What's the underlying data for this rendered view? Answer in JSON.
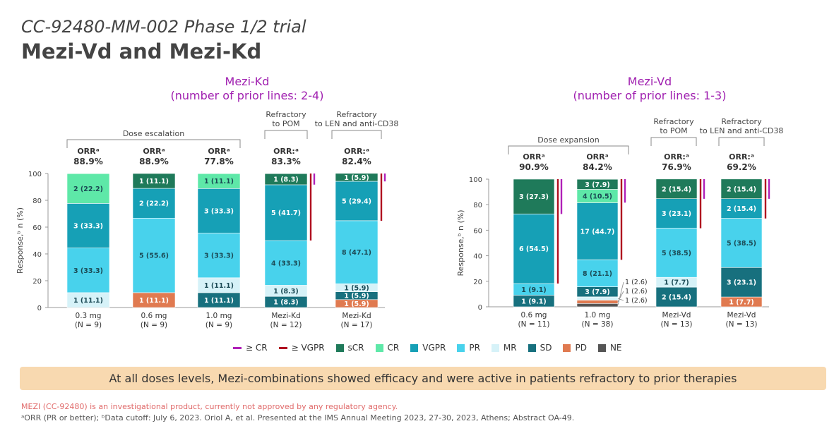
{
  "header": {
    "subtitle": "CC-92480-MM-002 Phase 1/2 trial",
    "title": "Mezi-Vd and Mezi-Kd"
  },
  "panels": {
    "left": {
      "title_line1": "Mezi-Kd",
      "title_line2": "(number of prior lines: 2-4)"
    },
    "right": {
      "title_line1": "Mezi-Vd",
      "title_line2": "(number of prior lines: 1-3)"
    }
  },
  "colors": {
    "sCR": "#1f7a5a",
    "CR": "#5ee8a8",
    "VGPR": "#16a0b6",
    "PR": "#48d2ec",
    "MR": "#d6f2f8",
    "SD": "#17707e",
    "PD": "#e07a50",
    "NE": "#555555",
    "geCR": "#b020b8",
    "geVGPR": "#b01020"
  },
  "legend": {
    "items": [
      {
        "label": "≥ CR",
        "key": "geCR",
        "type": "line"
      },
      {
        "label": "≥ VGPR",
        "key": "geVGPR",
        "type": "line"
      },
      {
        "label": "sCR",
        "key": "sCR",
        "type": "box"
      },
      {
        "label": "CR",
        "key": "CR",
        "type": "box"
      },
      {
        "label": "VGPR",
        "key": "VGPR",
        "type": "box"
      },
      {
        "label": "PR",
        "key": "PR",
        "type": "box"
      },
      {
        "label": "MR",
        "key": "MR",
        "type": "box"
      },
      {
        "label": "SD",
        "key": "SD",
        "type": "box"
      },
      {
        "label": "PD",
        "key": "PD",
        "type": "box"
      },
      {
        "label": "NE",
        "key": "NE",
        "type": "box"
      }
    ]
  },
  "banner": "At all doses levels, Mezi-combinations showed efficacy and were active in patients refractory to prior therapies",
  "footnotes": {
    "line1": "MEZI (CC-92480) is an investigational product, currently not approved by any regulatory agency.",
    "line2": "ᵃORR (PR or better); ᵇData cutoff: July 6, 2023. Oriol A, et al. Presented at the IMS Annual Meeting 2023, 27-30, 2023, Athens; Abstract OA-49."
  },
  "chart_data": [
    {
      "type": "bar",
      "stacked": true,
      "title": "Mezi-Kd",
      "ylabel": "Response,ᵇ n (%)",
      "ylim": [
        0,
        100
      ],
      "yticks": [
        0,
        20,
        40,
        60,
        80,
        100
      ],
      "groups": [
        {
          "label": "Dose escalation"
        },
        {
          "label_line1": "Refractory",
          "label_line2": "to POM"
        },
        {
          "label_line1": "Refractory",
          "label_line2": "to LEN and anti-CD38"
        }
      ],
      "bars": [
        {
          "cat1": "0.3 mg",
          "cat2": "(N = 9)",
          "orr_label": "ORRᵃ",
          "orr_value": "88.9%",
          "segments": [
            {
              "cat": "MR",
              "value": 11.1,
              "label": "1 (11.1)"
            },
            {
              "cat": "PR",
              "value": 33.3,
              "label": "3 (33.3)"
            },
            {
              "cat": "VGPR",
              "value": 33.3,
              "label": "3 (33.3)"
            },
            {
              "cat": "CR",
              "value": 22.2,
              "label": "2 (22.2)"
            }
          ],
          "ge_vgpr": null,
          "ge_cr": null
        },
        {
          "cat1": "0.6 mg",
          "cat2": "(N = 9)",
          "orr_label": "ORRᵃ",
          "orr_value": "88.9%",
          "segments": [
            {
              "cat": "PD",
              "value": 11.1,
              "label": "1 (11.1)"
            },
            {
              "cat": "PR",
              "value": 55.6,
              "label": "5 (55.6)"
            },
            {
              "cat": "VGPR",
              "value": 22.2,
              "label": "2 (22.2)"
            },
            {
              "cat": "sCR",
              "value": 11.1,
              "label": "1 (11.1)"
            }
          ],
          "ge_vgpr": null,
          "ge_cr": null
        },
        {
          "cat1": "1.0 mg",
          "cat2": "(N = 9)",
          "orr_label": "ORRᵃ",
          "orr_value": "77.8%",
          "segments": [
            {
              "cat": "SD",
              "value": 11.1,
              "label": "1 (11.1)"
            },
            {
              "cat": "MR",
              "value": 11.1,
              "label": "1 (11.1)"
            },
            {
              "cat": "PR",
              "value": 33.3,
              "label": "3 (33.3)"
            },
            {
              "cat": "VGPR",
              "value": 33.3,
              "label": "3 (33.3)"
            },
            {
              "cat": "CR",
              "value": 11.1,
              "label": "1 (11.1)"
            }
          ],
          "ge_vgpr": null,
          "ge_cr": null
        },
        {
          "cat1": "Mezi-Kd",
          "cat2": "(N = 12)",
          "orr_label": "ORR:ᵃ",
          "orr_value": "83.3%",
          "segments": [
            {
              "cat": "SD",
              "value": 8.3,
              "label": "1 (8.3)"
            },
            {
              "cat": "MR",
              "value": 8.3,
              "label": "1 (8.3)"
            },
            {
              "cat": "PR",
              "value": 33.3,
              "label": "4 (33.3)"
            },
            {
              "cat": "VGPR",
              "value": 41.7,
              "label": "5 (41.7)"
            },
            {
              "cat": "sCR",
              "value": 8.3,
              "label": "1 (8.3)"
            }
          ],
          "ge_vgpr": 50.0,
          "ge_cr": 8.3
        },
        {
          "cat1": "Mezi-Kd",
          "cat2": "(N = 17)",
          "orr_label": "ORR:ᵃ",
          "orr_value": "82.4%",
          "segments": [
            {
              "cat": "PD",
              "value": 5.9,
              "label": "1 (5.9)"
            },
            {
              "cat": "SD",
              "value": 5.9,
              "label": "1 (5.9)"
            },
            {
              "cat": "MR",
              "value": 5.9,
              "label": "1 (5.9)"
            },
            {
              "cat": "PR",
              "value": 47.1,
              "label": "8 (47.1)"
            },
            {
              "cat": "VGPR",
              "value": 29.4,
              "label": "5 (29.4)"
            },
            {
              "cat": "sCR",
              "value": 5.9,
              "label": "1 (5.9)"
            }
          ],
          "ge_vgpr": 35.3,
          "ge_cr": 5.9
        }
      ]
    },
    {
      "type": "bar",
      "stacked": true,
      "title": "Mezi-Vd",
      "ylabel": "Response,ᵇ n (%)",
      "ylim": [
        0,
        100
      ],
      "yticks": [
        0,
        20,
        40,
        60,
        80,
        100
      ],
      "groups": [
        {
          "label": "Dose expansion"
        },
        {
          "label_line1": "Refractory",
          "label_line2": "to POM"
        },
        {
          "label_line1": "Refractory",
          "label_line2": "to LEN and anti-CD38"
        }
      ],
      "bars": [
        {
          "cat1": "0.6 mg",
          "cat2": "(N = 11)",
          "orr_label": "ORRᵃ",
          "orr_value": "90.9%",
          "segments": [
            {
              "cat": "SD",
              "value": 9.1,
              "label": "1 (9.1)"
            },
            {
              "cat": "PR",
              "value": 9.1,
              "label": "1 (9.1)"
            },
            {
              "cat": "VGPR",
              "value": 54.5,
              "label": "6 (54.5)"
            },
            {
              "cat": "sCR",
              "value": 27.3,
              "label": "3 (27.3)"
            }
          ],
          "ge_vgpr": 81.8,
          "ge_cr": 27.3
        },
        {
          "cat1": "1.0 mg",
          "cat2": "(N = 38)",
          "orr_label": "ORRᵃ",
          "orr_value": "84.2%",
          "segments": [
            {
              "cat": "NE",
              "value": 2.6,
              "label": "1 (2.6)"
            },
            {
              "cat": "PD",
              "value": 2.6,
              "label": "1 (2.6)"
            },
            {
              "cat": "MR",
              "value": 2.6,
              "label": "1 (2.6)"
            },
            {
              "cat": "SD",
              "value": 7.9,
              "label": "3 (7.9)"
            },
            {
              "cat": "PR",
              "value": 21.1,
              "label": "8 (21.1)"
            },
            {
              "cat": "VGPR",
              "value": 44.7,
              "label": "17 (44.7)"
            },
            {
              "cat": "CR",
              "value": 10.5,
              "label": "4 (10.5)"
            },
            {
              "cat": "sCR",
              "value": 7.9,
              "label": "3 (7.9)"
            }
          ],
          "ge_vgpr": 63.2,
          "ge_cr": 18.4
        },
        {
          "cat1": "Mezi-Vd",
          "cat2": "(N = 13)",
          "orr_label": "ORR:ᵃ",
          "orr_value": "76.9%",
          "segments": [
            {
              "cat": "SD",
              "value": 15.4,
              "label": "2 (15.4)"
            },
            {
              "cat": "MR",
              "value": 7.7,
              "label": "1 (7.7)"
            },
            {
              "cat": "PR",
              "value": 38.5,
              "label": "5 (38.5)"
            },
            {
              "cat": "VGPR",
              "value": 23.1,
              "label": "3 (23.1)"
            },
            {
              "cat": "sCR",
              "value": 15.4,
              "label": "2 (15.4)"
            }
          ],
          "ge_vgpr": 38.5,
          "ge_cr": 15.4
        },
        {
          "cat1": "Mezi-Vd",
          "cat2": "(N = 13)",
          "orr_label": "ORR:ᵃ",
          "orr_value": "69.2%",
          "segments": [
            {
              "cat": "PD",
              "value": 7.7,
              "label": "1 (7.7)"
            },
            {
              "cat": "SD",
              "value": 23.1,
              "label": "3 (23.1)"
            },
            {
              "cat": "PR",
              "value": 38.5,
              "label": "5 (38.5)"
            },
            {
              "cat": "VGPR",
              "value": 15.4,
              "label": "2 (15.4)"
            },
            {
              "cat": "sCR",
              "value": 15.4,
              "label": "2 (15.4)"
            }
          ],
          "ge_vgpr": 30.8,
          "ge_cr": 15.4
        }
      ]
    }
  ]
}
